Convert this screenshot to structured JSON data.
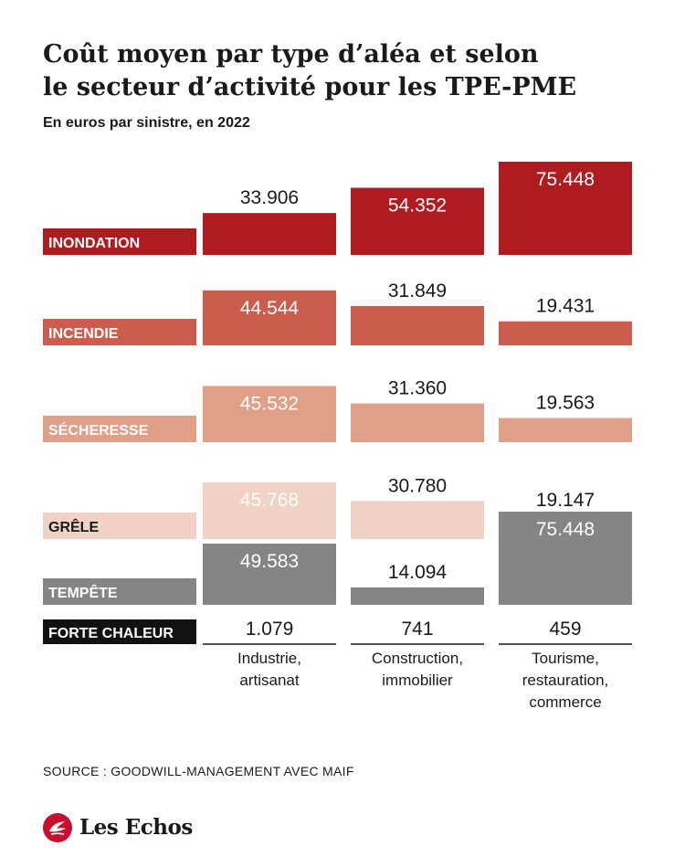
{
  "header": {
    "title_line1": "Coût moyen par type d’aléa et selon",
    "title_line2": "le secteur d’activité pour les TPE-PME",
    "subtitle": "En euros par sinistre, en 2022"
  },
  "footer": {
    "source": "SOURCE : GOODWILL-MANAGEMENT AVEC MAIF",
    "brand": "Les Echos"
  },
  "chart_data": {
    "type": "bar",
    "unit": "euros par sinistre",
    "year": "2022",
    "categories": [
      "Industrie,\nartisanat",
      "Construction,\nimmobilier",
      "Tourisme,\nrestauration,\ncommerce"
    ],
    "series": [
      {
        "name": "INONDATION",
        "color": "#b01b1f",
        "label_text_color": "#ffffff",
        "values": [
          33906,
          54352,
          75448
        ],
        "value_labels": [
          "33.906",
          "54.352",
          "75.448"
        ]
      },
      {
        "name": "INCENDIE",
        "color": "#cb5d4e",
        "label_text_color": "#ffffff",
        "values": [
          44544,
          31849,
          19431
        ],
        "value_labels": [
          "44.544",
          "31.849",
          "19.431"
        ]
      },
      {
        "name": "SÉCHERESSE",
        "color": "#e09f87",
        "label_text_color": "#ffffff",
        "values": [
          45532,
          31360,
          19563
        ],
        "value_labels": [
          "45.532",
          "31.360",
          "19.563"
        ]
      },
      {
        "name": "GRÊLE",
        "color": "#f1d2c4",
        "label_text_color": "#1a1a1a",
        "values": [
          45768,
          30780,
          19147
        ],
        "value_labels": [
          "45.768",
          "30.780",
          "19.147"
        ]
      },
      {
        "name": "TEMPÊTE",
        "color": "#858585",
        "label_text_color": "#ffffff",
        "values": [
          49583,
          14094,
          75448
        ],
        "value_labels": [
          "49.583",
          "14.094",
          "75.448"
        ]
      },
      {
        "name": "FORTE CHALEUR",
        "color": "#111111",
        "label_text_color": "#ffffff",
        "values": [
          1079,
          741,
          459
        ],
        "value_labels": [
          "1.079",
          "741",
          "459"
        ]
      }
    ]
  }
}
